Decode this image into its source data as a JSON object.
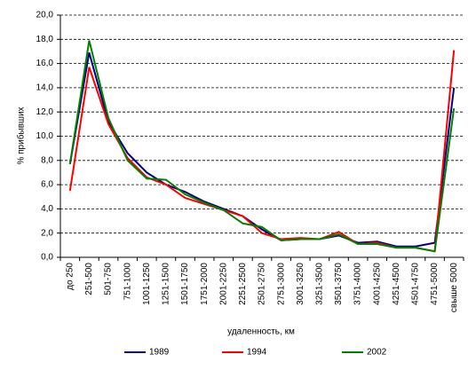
{
  "chart_data": {
    "type": "line",
    "y_label": "% прибывших",
    "x_label": "удаленность, км",
    "categories": [
      "до 250",
      "251-500",
      "501-750",
      "751-1000",
      "1001-1250",
      "1251-1500",
      "1501-1750",
      "1751-2000",
      "2001-2250",
      "2251-2500",
      "2501-2750",
      "2751-3000",
      "3001-3250",
      "3251-3500",
      "3501-3750",
      "3751-4000",
      "4001-4250",
      "4251-4500",
      "4501-4750",
      "4751-5000",
      "свыше 5000"
    ],
    "series": [
      {
        "name": "1989",
        "color": "#000080",
        "values": [
          7.7,
          16.9,
          11.2,
          8.6,
          7.0,
          6.0,
          5.4,
          4.6,
          4.0,
          3.4,
          2.3,
          1.4,
          1.5,
          1.5,
          1.8,
          1.2,
          1.3,
          0.9,
          0.9,
          1.2,
          14.0
        ]
      },
      {
        "name": "1994",
        "color": "#ff0000",
        "values": [
          5.5,
          15.7,
          11.0,
          8.2,
          6.6,
          6.0,
          4.9,
          4.4,
          3.9,
          3.4,
          2.0,
          1.5,
          1.6,
          1.5,
          2.1,
          1.1,
          1.2,
          0.8,
          0.8,
          0.5,
          17.1
        ]
      },
      {
        "name": "2002",
        "color": "#008000",
        "values": [
          7.7,
          17.9,
          11.5,
          8.0,
          6.5,
          6.4,
          5.2,
          4.5,
          3.9,
          2.8,
          2.5,
          1.4,
          1.5,
          1.5,
          1.9,
          1.1,
          1.1,
          0.8,
          0.8,
          0.5,
          12.3
        ]
      }
    ],
    "ylim": [
      0,
      20
    ],
    "yticks": [
      {
        "value": 0,
        "label": "0,0"
      },
      {
        "value": 2,
        "label": "2,0"
      },
      {
        "value": 4,
        "label": "4,0"
      },
      {
        "value": 6,
        "label": "6,0"
      },
      {
        "value": 8,
        "label": "8,0"
      },
      {
        "value": 10,
        "label": "10,0"
      },
      {
        "value": 12,
        "label": "12,0"
      },
      {
        "value": 14,
        "label": "14,0"
      },
      {
        "value": 16,
        "label": "16,0"
      },
      {
        "value": 18,
        "label": "18,0"
      },
      {
        "value": 20,
        "label": "20,0"
      }
    ],
    "grid": true,
    "legend": "bottom"
  }
}
